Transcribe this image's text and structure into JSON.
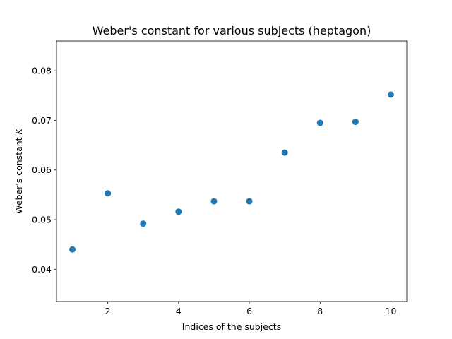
{
  "chart_data": {
    "type": "scatter",
    "title": "Weber's constant for various subjects (heptagon)",
    "xlabel": "Indices of the subjects",
    "ylabel_text": "Weber's constant ",
    "ylabel_symbol": "K",
    "xlim": [
      0.55,
      10.45
    ],
    "ylim": [
      0.0335,
      0.086
    ],
    "xticks": [
      2,
      4,
      6,
      8,
      10
    ],
    "xtick_labels": [
      "2",
      "4",
      "6",
      "8",
      "10"
    ],
    "yticks": [
      0.04,
      0.05,
      0.06,
      0.07,
      0.08
    ],
    "ytick_labels": [
      "0.04",
      "0.05",
      "0.06",
      "0.07",
      "0.08"
    ],
    "grid": false,
    "marker_color": "#1f77b4",
    "series": [
      {
        "x": [
          1,
          2,
          3,
          4,
          5,
          6,
          7,
          8,
          9,
          10
        ],
        "y": [
          0.044,
          0.0553,
          0.0492,
          0.0516,
          0.0537,
          0.0537,
          0.0635,
          0.0695,
          0.0697,
          0.0752
        ]
      }
    ]
  }
}
